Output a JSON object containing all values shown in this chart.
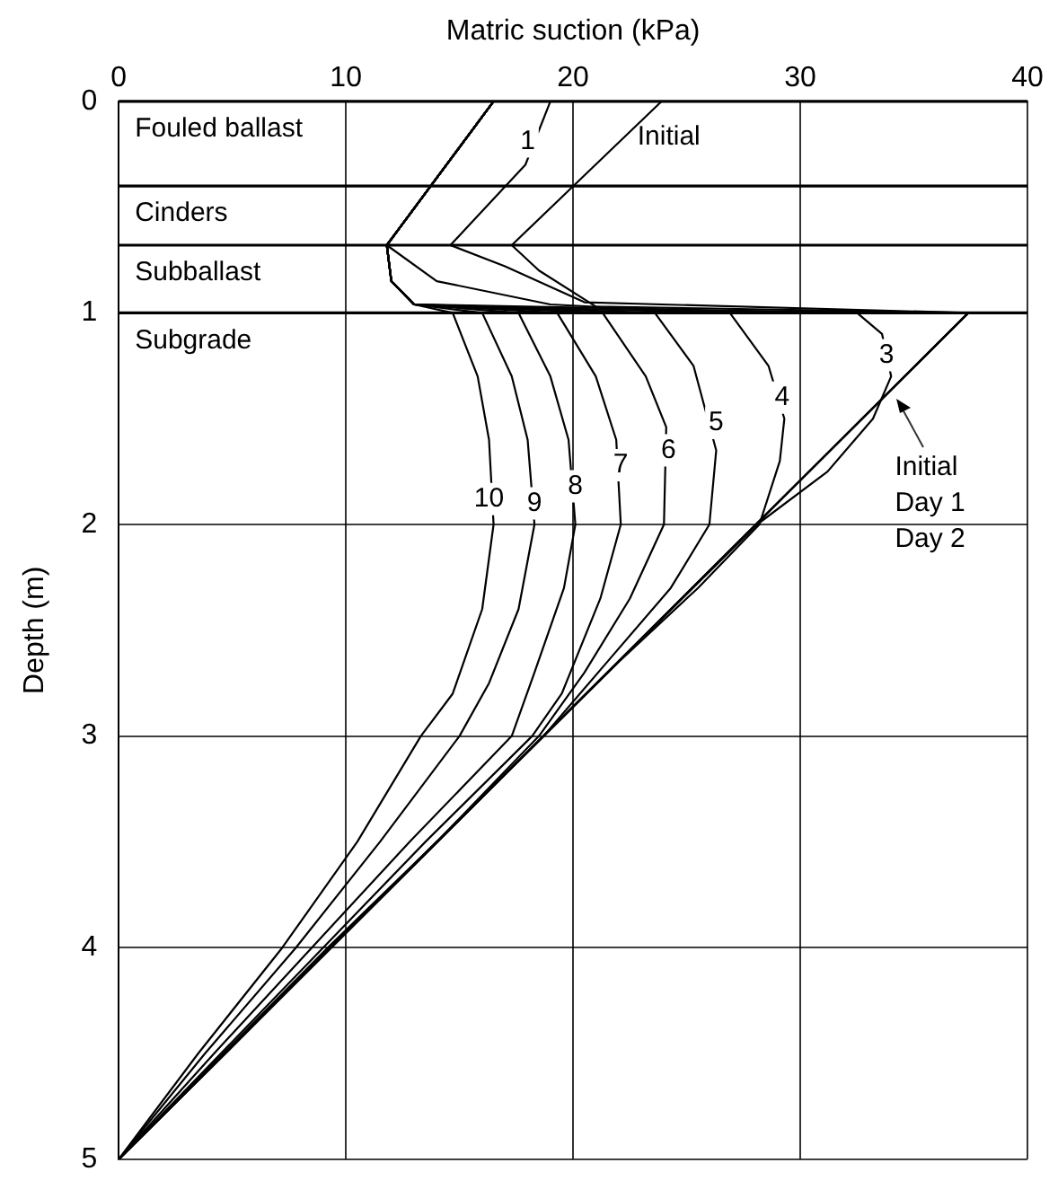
{
  "chart_data": {
    "type": "line",
    "xlabel": "Matric suction (kPa)",
    "ylabel": "Depth (m)",
    "xlim": [
      0,
      40
    ],
    "xticks": [
      0,
      10,
      20,
      30,
      40
    ],
    "ylim": [
      5,
      0
    ],
    "yticks": [
      0,
      1,
      2,
      3,
      4,
      5
    ],
    "grid": true,
    "legend": false,
    "marker": "none",
    "line_style": "solid",
    "series": [
      {
        "color": "#000000",
        "x": [
          23.9,
          20.5,
          17.3,
          18.5,
          21,
          37.4,
          0
        ],
        "values": [
          0,
          0.35,
          0.68,
          0.8,
          0.97,
          1.0,
          5
        ]
      },
      {
        "color": "#000000",
        "x": [
          19,
          17.9,
          14.6,
          17,
          20.5,
          37.4,
          0
        ],
        "values": [
          0,
          0.3,
          0.68,
          0.78,
          0.95,
          1.0,
          5
        ]
      },
      {
        "color": "#000000",
        "x": [
          16.5,
          11.8,
          14,
          19,
          24.4,
          37.4,
          0
        ],
        "values": [
          0,
          0.68,
          0.85,
          0.96,
          0.99,
          1.0,
          5
        ]
      },
      {
        "color": "#000000",
        "x": [
          16.5,
          11.8,
          12,
          13,
          32.5,
          33.6,
          34.0,
          33.2,
          31.2,
          28.1,
          18.7,
          9.35,
          0
        ],
        "values": [
          0,
          0.68,
          0.85,
          0.96,
          1.0,
          1.1,
          1.3,
          1.5,
          1.75,
          2.0,
          3.0,
          4.0,
          5
        ]
      },
      {
        "color": "#000000",
        "x": [
          16.5,
          11.8,
          12,
          13,
          26.9,
          28.6,
          29.3,
          29.1,
          28.2,
          25.5,
          22,
          18.7,
          14,
          9.35,
          4.7,
          0
        ],
        "values": [
          0,
          0.68,
          0.85,
          0.96,
          1.0,
          1.25,
          1.5,
          1.7,
          2.0,
          2.3,
          2.65,
          3.0,
          3.5,
          4.0,
          4.5,
          5
        ]
      },
      {
        "color": "#000000",
        "x": [
          16.5,
          11.8,
          12,
          13,
          23.6,
          25.3,
          26.3,
          26.0,
          24.3,
          21.5,
          18.7,
          14,
          9.3,
          4.7,
          0
        ],
        "values": [
          0,
          0.68,
          0.85,
          0.96,
          1.0,
          1.25,
          1.65,
          2.0,
          2.3,
          2.65,
          3.0,
          3.5,
          4.0,
          4.5,
          5
        ]
      },
      {
        "color": "#000000",
        "x": [
          16.5,
          11.8,
          12,
          13,
          21.3,
          23.2,
          24.1,
          24.0,
          22.5,
          20.5,
          18.5,
          14,
          9.2,
          4.6,
          0
        ],
        "values": [
          0,
          0.68,
          0.85,
          0.96,
          1.0,
          1.3,
          1.54,
          2.0,
          2.35,
          2.7,
          3.0,
          3.5,
          4.0,
          4.5,
          5
        ]
      },
      {
        "color": "#000000",
        "x": [
          16.5,
          11.8,
          12,
          13,
          19.3,
          21,
          21.9,
          22.1,
          21.2,
          19.5,
          18.2,
          13.5,
          9.0,
          4.5,
          0
        ],
        "values": [
          0,
          0.68,
          0.85,
          0.96,
          1.0,
          1.3,
          1.6,
          2.0,
          2.35,
          2.8,
          3.0,
          3.5,
          4.0,
          4.5,
          5
        ]
      },
      {
        "color": "#000000",
        "x": [
          16.5,
          11.8,
          12,
          13,
          17.6,
          19,
          19.8,
          20.1,
          19.6,
          18.3,
          17.3,
          12.8,
          8.5,
          4.2,
          0
        ],
        "values": [
          0,
          0.68,
          0.85,
          0.96,
          1.0,
          1.3,
          1.6,
          2.0,
          2.3,
          2.7,
          3.0,
          3.5,
          4.0,
          4.5,
          5
        ]
      },
      {
        "color": "#000000",
        "x": [
          16.5,
          11.8,
          12,
          13,
          16.0,
          17.3,
          18.0,
          18.3,
          17.6,
          16.3,
          15.0,
          11.5,
          7.8,
          3.8,
          0
        ],
        "values": [
          0,
          0.68,
          0.85,
          0.96,
          1.0,
          1.3,
          1.6,
          2.0,
          2.4,
          2.75,
          3.0,
          3.5,
          4.0,
          4.5,
          5
        ]
      },
      {
        "color": "#000000",
        "x": [
          16.5,
          11.8,
          12,
          13,
          14.7,
          15.8,
          16.3,
          16.5,
          16.0,
          14.7,
          13.3,
          10.5,
          7.2,
          3.5,
          0
        ],
        "values": [
          0,
          0.68,
          0.85,
          0.96,
          1.0,
          1.3,
          1.6,
          2.0,
          2.4,
          2.8,
          3.0,
          3.5,
          4.0,
          4.5,
          5
        ]
      }
    ],
    "ref_lines": [
      {
        "axis": "y",
        "value": 0,
        "color": "#000000",
        "label": "Fouled ballast"
      },
      {
        "axis": "y",
        "value": 0.4,
        "color": "#000000",
        "label": "Cinders"
      },
      {
        "axis": "y",
        "value": 0.68,
        "color": "#000000",
        "label": "Subballast"
      },
      {
        "axis": "y",
        "value": 1.0,
        "color": "#000000",
        "label": "Subgrade"
      }
    ],
    "annotations": [
      {
        "text": "1",
        "x": 18.0,
        "y": 0.19
      },
      {
        "text": "Initial",
        "x": 22.2,
        "y": 0.17
      },
      {
        "text": "3",
        "x": 33.8,
        "y": 1.2
      },
      {
        "text": "4",
        "x": 29.2,
        "y": 1.4
      },
      {
        "text": "5",
        "x": 26.3,
        "y": 1.52
      },
      {
        "text": "6",
        "x": 24.2,
        "y": 1.65
      },
      {
        "text": "7",
        "x": 22.1,
        "y": 1.72
      },
      {
        "text": "8",
        "x": 20.1,
        "y": 1.82
      },
      {
        "text": "9",
        "x": 18.3,
        "y": 1.9
      },
      {
        "text": "10",
        "x": 16.3,
        "y": 1.88
      },
      {
        "text": "Initial\nDay 1\nDay 2",
        "x": 33.85,
        "y": 1.38
      }
    ]
  }
}
